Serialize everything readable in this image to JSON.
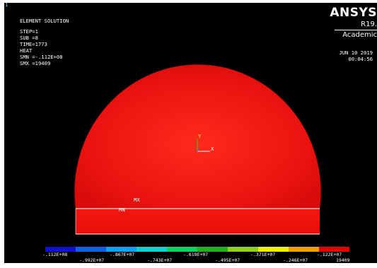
{
  "window_number": "1",
  "info": {
    "title": "ELEMENT SOLUTION",
    "lines": [
      "STEP=1",
      "SUB =8",
      "TIME=1773",
      "HEAT",
      "SMN =-.112E+08",
      "SMX =19409"
    ]
  },
  "brand": {
    "logo": "ANSYS",
    "version": "R19.",
    "edition": "Academic",
    "date": "JUN 10 2019",
    "time": "00:04:56"
  },
  "triad": {
    "y_label": "Y",
    "x_label": "X"
  },
  "markers": {
    "max": "MX",
    "min": "MN"
  },
  "colors": {
    "background": "#000000",
    "model": "#ee1010",
    "legend": [
      "#1010d0",
      "#1060e0",
      "#10a0f0",
      "#10d0d0",
      "#10d060",
      "#20b020",
      "#90d020",
      "#f0f000",
      "#f0a000",
      "#e00000"
    ]
  },
  "legend_labels": {
    "top": [
      "-.112E+08",
      "-.867E+07",
      "-.619E+07",
      "-.371E+07",
      "-.122E+07"
    ],
    "bottom": [
      "-.992E+07",
      "-.743E+07",
      "-.495E+07",
      "-.246E+07",
      "19409"
    ]
  }
}
